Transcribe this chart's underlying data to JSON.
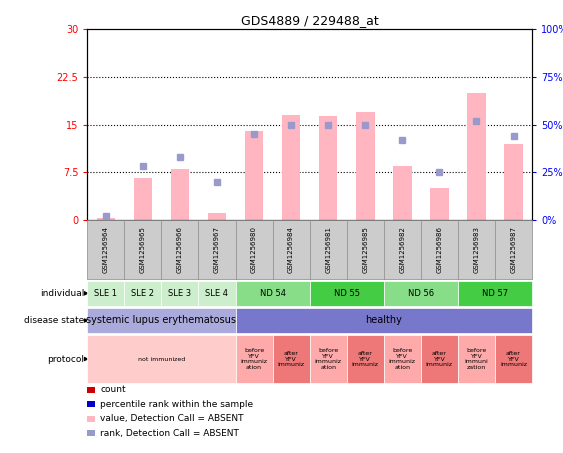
{
  "title": "GDS4889 / 229488_at",
  "samples": [
    "GSM1256964",
    "GSM1256965",
    "GSM1256966",
    "GSM1256967",
    "GSM1256980",
    "GSM1256984",
    "GSM1256981",
    "GSM1256985",
    "GSM1256982",
    "GSM1256986",
    "GSM1256983",
    "GSM1256987"
  ],
  "bar_values": [
    0.3,
    6.5,
    8.0,
    1.0,
    14.0,
    16.5,
    16.3,
    17.0,
    8.5,
    5.0,
    20.0,
    12.0
  ],
  "rank_values": [
    2.0,
    28.0,
    33.0,
    20.0,
    45.0,
    50.0,
    50.0,
    50.0,
    42.0,
    25.0,
    52.0,
    44.0
  ],
  "ylim_left": [
    0,
    30
  ],
  "ylim_right": [
    0,
    100
  ],
  "yticks_left": [
    0,
    7.5,
    15,
    22.5,
    30
  ],
  "yticks_right": [
    0,
    25,
    50,
    75,
    100
  ],
  "ytick_labels_left": [
    "0",
    "7.5",
    "15",
    "22.5",
    "30"
  ],
  "ytick_labels_right": [
    "0%",
    "25%",
    "50%",
    "75%",
    "100%"
  ],
  "bar_color": "#FFB6C1",
  "rank_color": "#9999CC",
  "individual_labels": [
    {
      "text": "SLE 1",
      "start": 0,
      "end": 1,
      "color": "#CCEECC"
    },
    {
      "text": "SLE 2",
      "start": 1,
      "end": 2,
      "color": "#CCEECC"
    },
    {
      "text": "SLE 3",
      "start": 2,
      "end": 3,
      "color": "#CCEECC"
    },
    {
      "text": "SLE 4",
      "start": 3,
      "end": 4,
      "color": "#CCEECC"
    },
    {
      "text": "ND 54",
      "start": 4,
      "end": 6,
      "color": "#88DD88"
    },
    {
      "text": "ND 55",
      "start": 6,
      "end": 8,
      "color": "#44CC44"
    },
    {
      "text": "ND 56",
      "start": 8,
      "end": 10,
      "color": "#88DD88"
    },
    {
      "text": "ND 57",
      "start": 10,
      "end": 12,
      "color": "#44CC44"
    }
  ],
  "disease_state_labels": [
    {
      "text": "systemic lupus erythematosus",
      "start": 0,
      "end": 4,
      "color": "#AAAADD"
    },
    {
      "text": "healthy",
      "start": 4,
      "end": 12,
      "color": "#7777CC"
    }
  ],
  "protocol_labels": [
    {
      "text": "not immunized",
      "start": 0,
      "end": 4,
      "color": "#FFCCCC"
    },
    {
      "text": "before\nYFV\nimmuniz\nation",
      "start": 4,
      "end": 5,
      "color": "#FFAAAA"
    },
    {
      "text": "after\nYFV\nimmuniz",
      "start": 5,
      "end": 6,
      "color": "#EE7777"
    },
    {
      "text": "before\nYFV\nimmuniz\nation",
      "start": 6,
      "end": 7,
      "color": "#FFAAAA"
    },
    {
      "text": "after\nYFV\nimmuniz",
      "start": 7,
      "end": 8,
      "color": "#EE7777"
    },
    {
      "text": "before\nYFV\nimmuniz\nation",
      "start": 8,
      "end": 9,
      "color": "#FFAAAA"
    },
    {
      "text": "after\nYFV\nimmuniz",
      "start": 9,
      "end": 10,
      "color": "#EE7777"
    },
    {
      "text": "before\nYFV\nimmuni\nzation",
      "start": 10,
      "end": 11,
      "color": "#FFAAAA"
    },
    {
      "text": "after\nYFV\nimmuniz",
      "start": 11,
      "end": 12,
      "color": "#EE7777"
    }
  ],
  "legend_items": [
    {
      "color": "#CC0000",
      "label": "count"
    },
    {
      "color": "#0000CC",
      "label": "percentile rank within the sample"
    },
    {
      "color": "#FFB6C1",
      "label": "value, Detection Call = ABSENT"
    },
    {
      "color": "#9999CC",
      "label": "rank, Detection Call = ABSENT"
    }
  ]
}
